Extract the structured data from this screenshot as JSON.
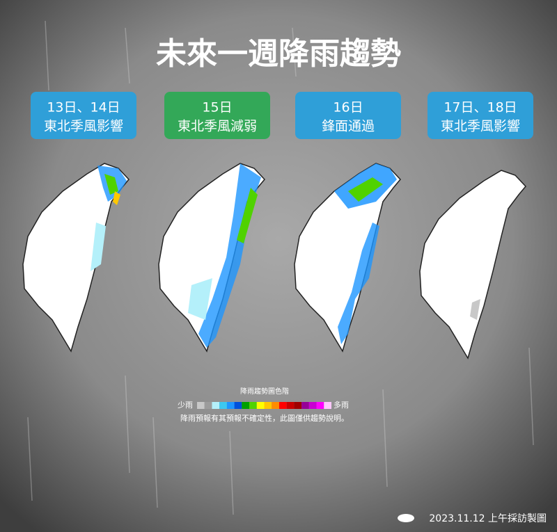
{
  "header": {
    "title": "未來一週降雨趨勢"
  },
  "panels": [
    {
      "date": "13日、14日",
      "label": "東北季風影響",
      "color": "#2f9fd8"
    },
    {
      "date": "15日",
      "label": "東北季風減弱",
      "color": "#33a858"
    },
    {
      "date": "16日",
      "label": "鋒面通過",
      "color": "#2f9fd8"
    },
    {
      "date": "17日、18日",
      "label": "東北季風影響",
      "color": "#2f9fd8"
    }
  ],
  "legend": {
    "title": "降雨趨勢圖色階",
    "low": "少雨",
    "high": "多雨",
    "colors": [
      "#c8c8c8",
      "#9c9c9c",
      "#b4f0fa",
      "#3cc8f0",
      "#1e96ff",
      "#0050dc",
      "#00a000",
      "#50d200",
      "#ffff00",
      "#ffc800",
      "#ff8c00",
      "#ff0000",
      "#c80000",
      "#a00000",
      "#960096",
      "#c800d2",
      "#ff00ff",
      "#ffc8ff"
    ]
  },
  "note": "降雨預報有其預報不確定性，此圖僅供趨勢說明。",
  "footer": "2023.11.12 上午採訪製圖"
}
